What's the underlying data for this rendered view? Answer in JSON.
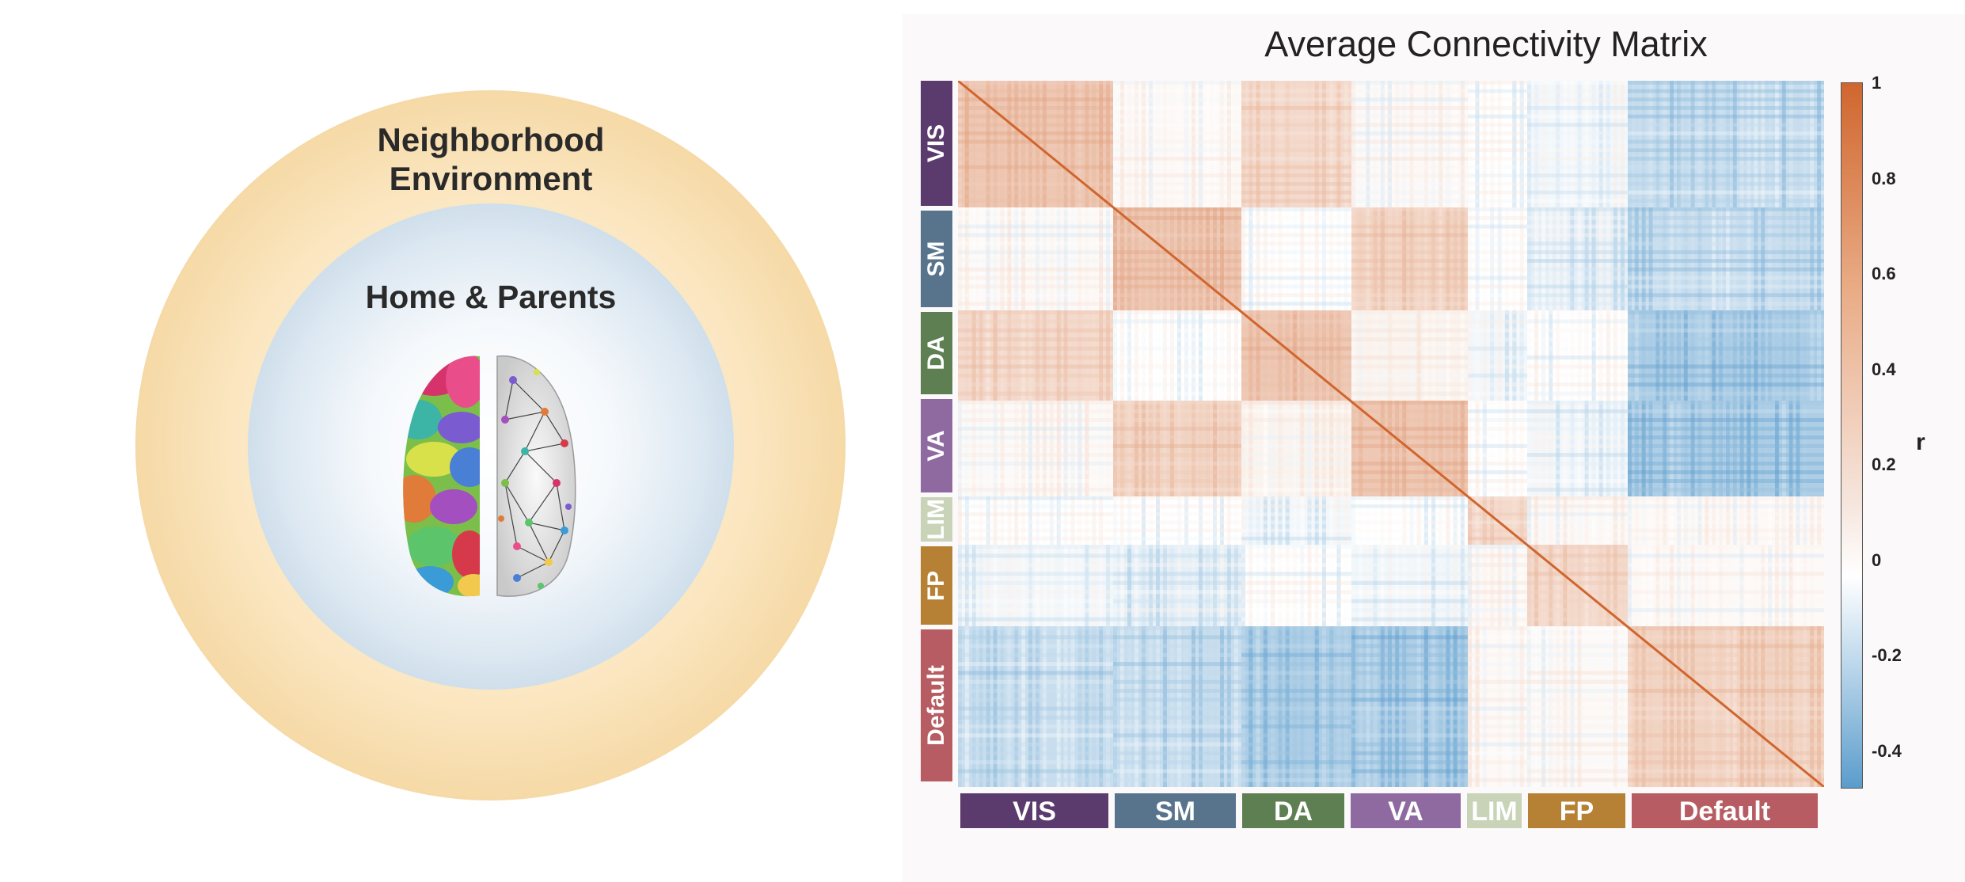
{
  "left": {
    "outer_label_line1": "Neighborhood",
    "outer_label_line2": "Environment",
    "inner_label": "Home & Parents",
    "outer_color": "#f3d49c",
    "inner_color": "#a8c2d8"
  },
  "chart_data": {
    "type": "heatmap",
    "title": "Average Connectivity Matrix",
    "networks": [
      {
        "name": "VIS",
        "color": "#5b3a6e"
      },
      {
        "name": "SM",
        "color": "#58738c"
      },
      {
        "name": "DA",
        "color": "#5e7f51"
      },
      {
        "name": "VA",
        "color": "#8f6aa1"
      },
      {
        "name": "LIM",
        "color": "#c8d3b8"
      },
      {
        "name": "FP",
        "color": "#b68035"
      },
      {
        "name": "Default",
        "color": "#b65c62"
      }
    ],
    "block_means": [
      [
        0.45,
        0.05,
        0.3,
        0.05,
        0.0,
        -0.05,
        -0.2
      ],
      [
        0.05,
        0.45,
        0.0,
        0.35,
        0.0,
        -0.1,
        -0.2
      ],
      [
        0.3,
        0.0,
        0.45,
        0.1,
        -0.05,
        0.0,
        -0.3
      ],
      [
        0.05,
        0.35,
        0.1,
        0.45,
        0.0,
        -0.05,
        -0.3
      ],
      [
        0.0,
        0.0,
        -0.05,
        0.0,
        0.3,
        0.05,
        0.05
      ],
      [
        -0.05,
        -0.1,
        0.0,
        -0.05,
        0.05,
        0.3,
        0.05
      ],
      [
        -0.2,
        -0.2,
        -0.3,
        -0.3,
        0.05,
        0.05,
        0.35
      ]
    ],
    "diagonal_value": 1,
    "colorbar": {
      "label": "r",
      "ticks": [
        "1",
        "0.8",
        "0.6",
        "0.4",
        "0.2",
        "0",
        "-0.2",
        "-0.4"
      ],
      "range": [
        -0.48,
        1
      ],
      "high_color": "#d0662e",
      "low_color": "#5b9ccc"
    }
  }
}
